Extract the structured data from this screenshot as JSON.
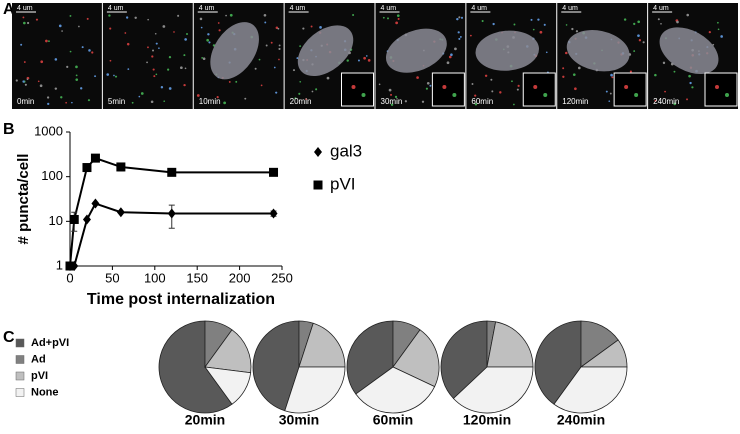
{
  "panel_labels": [
    "A",
    "B",
    "C"
  ],
  "panel_a": {
    "images": [
      {
        "scale": "4 um",
        "time": "0min"
      },
      {
        "scale": "4 um",
        "time": "5min"
      },
      {
        "scale": "4 um",
        "time": "10min"
      },
      {
        "scale": "4 um",
        "time": "20min"
      },
      {
        "scale": "4 um",
        "time": "30min"
      },
      {
        "scale": "4 um",
        "time": "60min"
      },
      {
        "scale": "4 um",
        "time": "120min"
      },
      {
        "scale": "4 um",
        "time": "240min"
      }
    ]
  },
  "chart_data": [
    {
      "type": "line",
      "y_label": "# puncta/cell",
      "x_label": "Time post internalization",
      "x": [
        0,
        5,
        20,
        30,
        60,
        120,
        240
      ],
      "series": [
        {
          "name": "gal3",
          "color": "#000000",
          "marker": "diamond",
          "values": [
            1,
            1,
            11,
            25,
            16,
            15,
            15
          ],
          "errors": [
            0,
            0,
            0,
            0,
            0,
            8,
            2
          ]
        },
        {
          "name": "pVI",
          "color": "#000000",
          "marker": "square",
          "values": [
            1,
            11,
            160,
            260,
            165,
            125,
            125
          ],
          "errors": [
            0,
            5,
            0,
            0,
            30,
            15,
            10
          ]
        }
      ],
      "xlim": [
        0,
        250
      ],
      "xticks": [
        0,
        50,
        100,
        150,
        200,
        250
      ],
      "ylim": [
        1,
        1000
      ],
      "yticks": [
        1,
        10,
        100,
        1000
      ],
      "log_y": true
    },
    {
      "type": "pie",
      "categories": [
        "Ad+pVI",
        "Ad",
        "pVI",
        "None"
      ],
      "colors": [
        "#595959",
        "#808080",
        "#bfbfbf",
        "#f2f2f2"
      ],
      "pies": [
        {
          "name": "20min",
          "values": [
            60,
            10,
            17,
            13
          ]
        },
        {
          "name": "30min",
          "values": [
            45,
            5,
            20,
            30
          ]
        },
        {
          "name": "60min",
          "values": [
            35,
            10,
            22,
            33
          ]
        },
        {
          "name": "120min",
          "values": [
            37,
            3,
            22,
            38
          ]
        },
        {
          "name": "240min",
          "values": [
            40,
            15,
            10,
            35
          ]
        }
      ]
    }
  ]
}
